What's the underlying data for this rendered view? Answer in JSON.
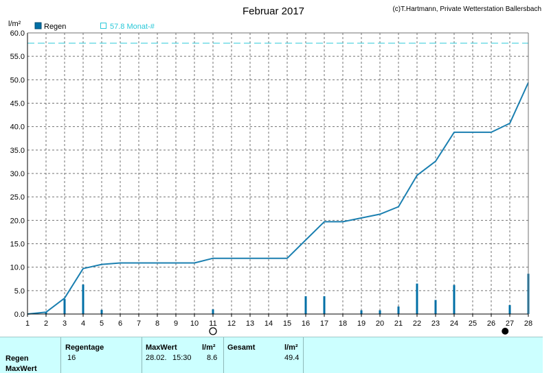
{
  "chart_data": {
    "type": "bar+line",
    "title": "Februar 2017",
    "copyright": "(c)T.Hartmann, Private Wetterstation Ballersbach",
    "ylabel": "l/m²",
    "ylim": [
      0,
      60
    ],
    "yticks": [
      "0.0",
      "5.0",
      "10.0",
      "15.0",
      "20.0",
      "25.0",
      "30.0",
      "35.0",
      "40.0",
      "45.0",
      "50.0",
      "55.0",
      "60.0"
    ],
    "xlim": [
      1,
      28
    ],
    "xticks": [
      "1",
      "2",
      "3",
      "4",
      "5",
      "6",
      "7",
      "8",
      "9",
      "10",
      "11",
      "12",
      "13",
      "14",
      "15",
      "16",
      "17",
      "18",
      "19",
      "20",
      "21",
      "22",
      "23",
      "24",
      "25",
      "26",
      "27",
      "28"
    ],
    "grid": true,
    "legend": [
      {
        "label": "Regen",
        "style": "filled-square",
        "color": "#006fa6"
      },
      {
        "label": "57.8 Monat-#",
        "style": "open-square",
        "color": "#29c8d8"
      }
    ],
    "reference_line": {
      "value": 57.8,
      "label": "57.8 Monat-#",
      "color": "#29c8d8"
    },
    "series": [
      {
        "name": "Regen",
        "kind": "bar",
        "color": "#006fa6",
        "x": [
          2,
          3,
          4,
          5,
          11,
          16,
          17,
          19,
          20,
          21,
          22,
          23,
          24,
          27,
          28
        ],
        "values": [
          0.5,
          3.2,
          6.3,
          0.9,
          1.0,
          3.8,
          3.8,
          0.8,
          0.8,
          1.6,
          6.5,
          3.0,
          6.2,
          1.9,
          8.6
        ]
      },
      {
        "name": "Summe",
        "kind": "line",
        "color": "#1a7fb0",
        "x": [
          1,
          2,
          3,
          4,
          5,
          6,
          7,
          8,
          9,
          10,
          11,
          12,
          13,
          14,
          15,
          16,
          17,
          18,
          19,
          20,
          21,
          22,
          23,
          24,
          25,
          26,
          27,
          28
        ],
        "values": [
          0.0,
          0.4,
          3.4,
          9.7,
          10.6,
          10.9,
          10.9,
          10.9,
          10.9,
          10.9,
          11.9,
          11.9,
          11.9,
          11.9,
          11.9,
          15.8,
          19.7,
          19.7,
          20.5,
          21.3,
          22.9,
          29.6,
          32.6,
          38.8,
          38.8,
          38.8,
          40.7,
          49.4
        ]
      }
    ],
    "moon_markers": [
      {
        "day": 11,
        "phase": "full-moon"
      },
      {
        "day": 26.75,
        "phase": "new-moon"
      }
    ]
  },
  "summary": {
    "headers": {
      "regentage": "Regentage",
      "maxwert": "MaxWert",
      "unit1": "l/m²",
      "gesamt": "Gesamt",
      "unit2": "l/m²"
    },
    "rows": {
      "regen_label": "Regen",
      "maxwert_label": "MaxWert"
    },
    "values": {
      "regentage": "16",
      "max_date": "28.02.",
      "max_time": "15:30",
      "max_value": "8.6",
      "total": "49.4"
    }
  }
}
